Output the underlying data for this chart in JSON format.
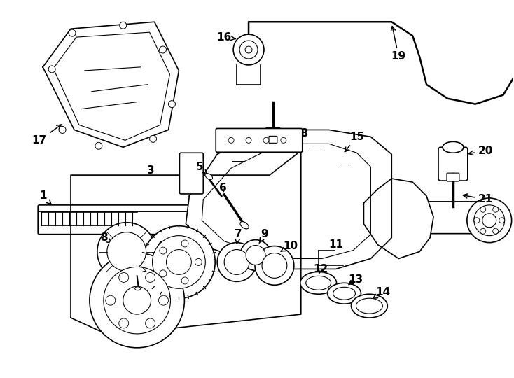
{
  "bg_color": "#ffffff",
  "line_color": "#000000",
  "fig_width": 7.34,
  "fig_height": 5.4
}
